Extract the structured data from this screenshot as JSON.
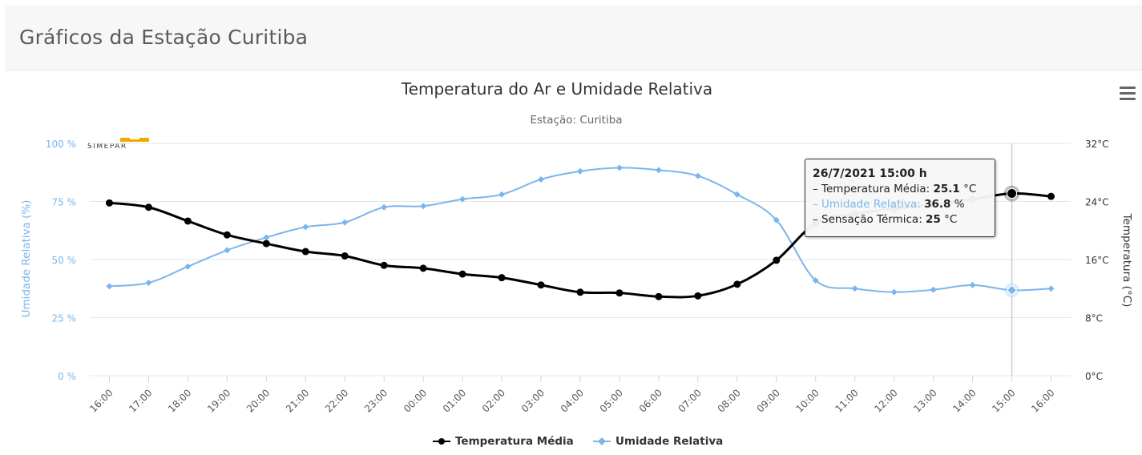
{
  "header": {
    "title": "Gráficos da Estação Curitiba"
  },
  "logo": {
    "text": "SIMEPAR"
  },
  "colors": {
    "temperature": "#000000",
    "humidity": "#7cb5ec",
    "grid": "#e6e6e6",
    "left_axis_text": "#7cb5ec",
    "right_axis_text": "#333333"
  },
  "menu": {
    "icon": "hamburger-menu-icon"
  },
  "tooltip": {
    "title": "26/7/2021 15:00 h",
    "rows": [
      {
        "label": "Temperatura Média: ",
        "value": "25.1",
        "unit": " °C"
      },
      {
        "label": "Umidade Relativa: ",
        "value": "36.8",
        "unit": " %"
      },
      {
        "label": "Sensação Térmica: ",
        "value": "25",
        "unit": " °C"
      }
    ]
  },
  "chart_data": {
    "type": "line",
    "title": "Temperatura do Ar e Umidade Relativa",
    "subtitle": "Estação: Curitiba",
    "categories": [
      "16:00",
      "17:00",
      "18:00",
      "19:00",
      "20:00",
      "21:00",
      "22:00",
      "23:00",
      "00:00",
      "01:00",
      "02:00",
      "03:00",
      "04:00",
      "05:00",
      "06:00",
      "07:00",
      "08:00",
      "09:00",
      "10:00",
      "11:00",
      "12:00",
      "13:00",
      "14:00",
      "15:00",
      "16:00"
    ],
    "y_left": {
      "label": "Umidade Relativa (%)",
      "min": 0,
      "max": 100,
      "ticks": [
        "0 %",
        "25 %",
        "50 %",
        "75 %",
        "100 %"
      ]
    },
    "y_right": {
      "label": "Temperatura (°C)",
      "min": 0,
      "max": 32,
      "ticks": [
        "0°C",
        "8°C",
        "16°C",
        "24°C",
        "32°C"
      ]
    },
    "grid": true,
    "legend_position": "bottom-center",
    "highlighted_category_index": 23,
    "series": [
      {
        "name": "Temperatura Média",
        "axis": "right",
        "values": [
          23.8,
          23.2,
          21.3,
          19.4,
          18.2,
          17.1,
          16.5,
          15.2,
          14.8,
          14.0,
          13.5,
          12.5,
          11.5,
          11.4,
          10.9,
          11.0,
          12.6,
          15.9,
          21.0,
          22.3,
          23.0,
          23.6,
          24.3,
          25.1,
          24.7
        ]
      },
      {
        "name": "Umidade Relativa",
        "axis": "left",
        "values": [
          38.5,
          40.0,
          47.0,
          54.0,
          59.5,
          64.0,
          66.0,
          72.5,
          73.0,
          76.0,
          78.0,
          84.5,
          88.0,
          89.5,
          88.5,
          86.0,
          78.0,
          67.0,
          41.0,
          37.5,
          36.0,
          37.0,
          39.0,
          36.8,
          37.5
        ]
      }
    ]
  }
}
